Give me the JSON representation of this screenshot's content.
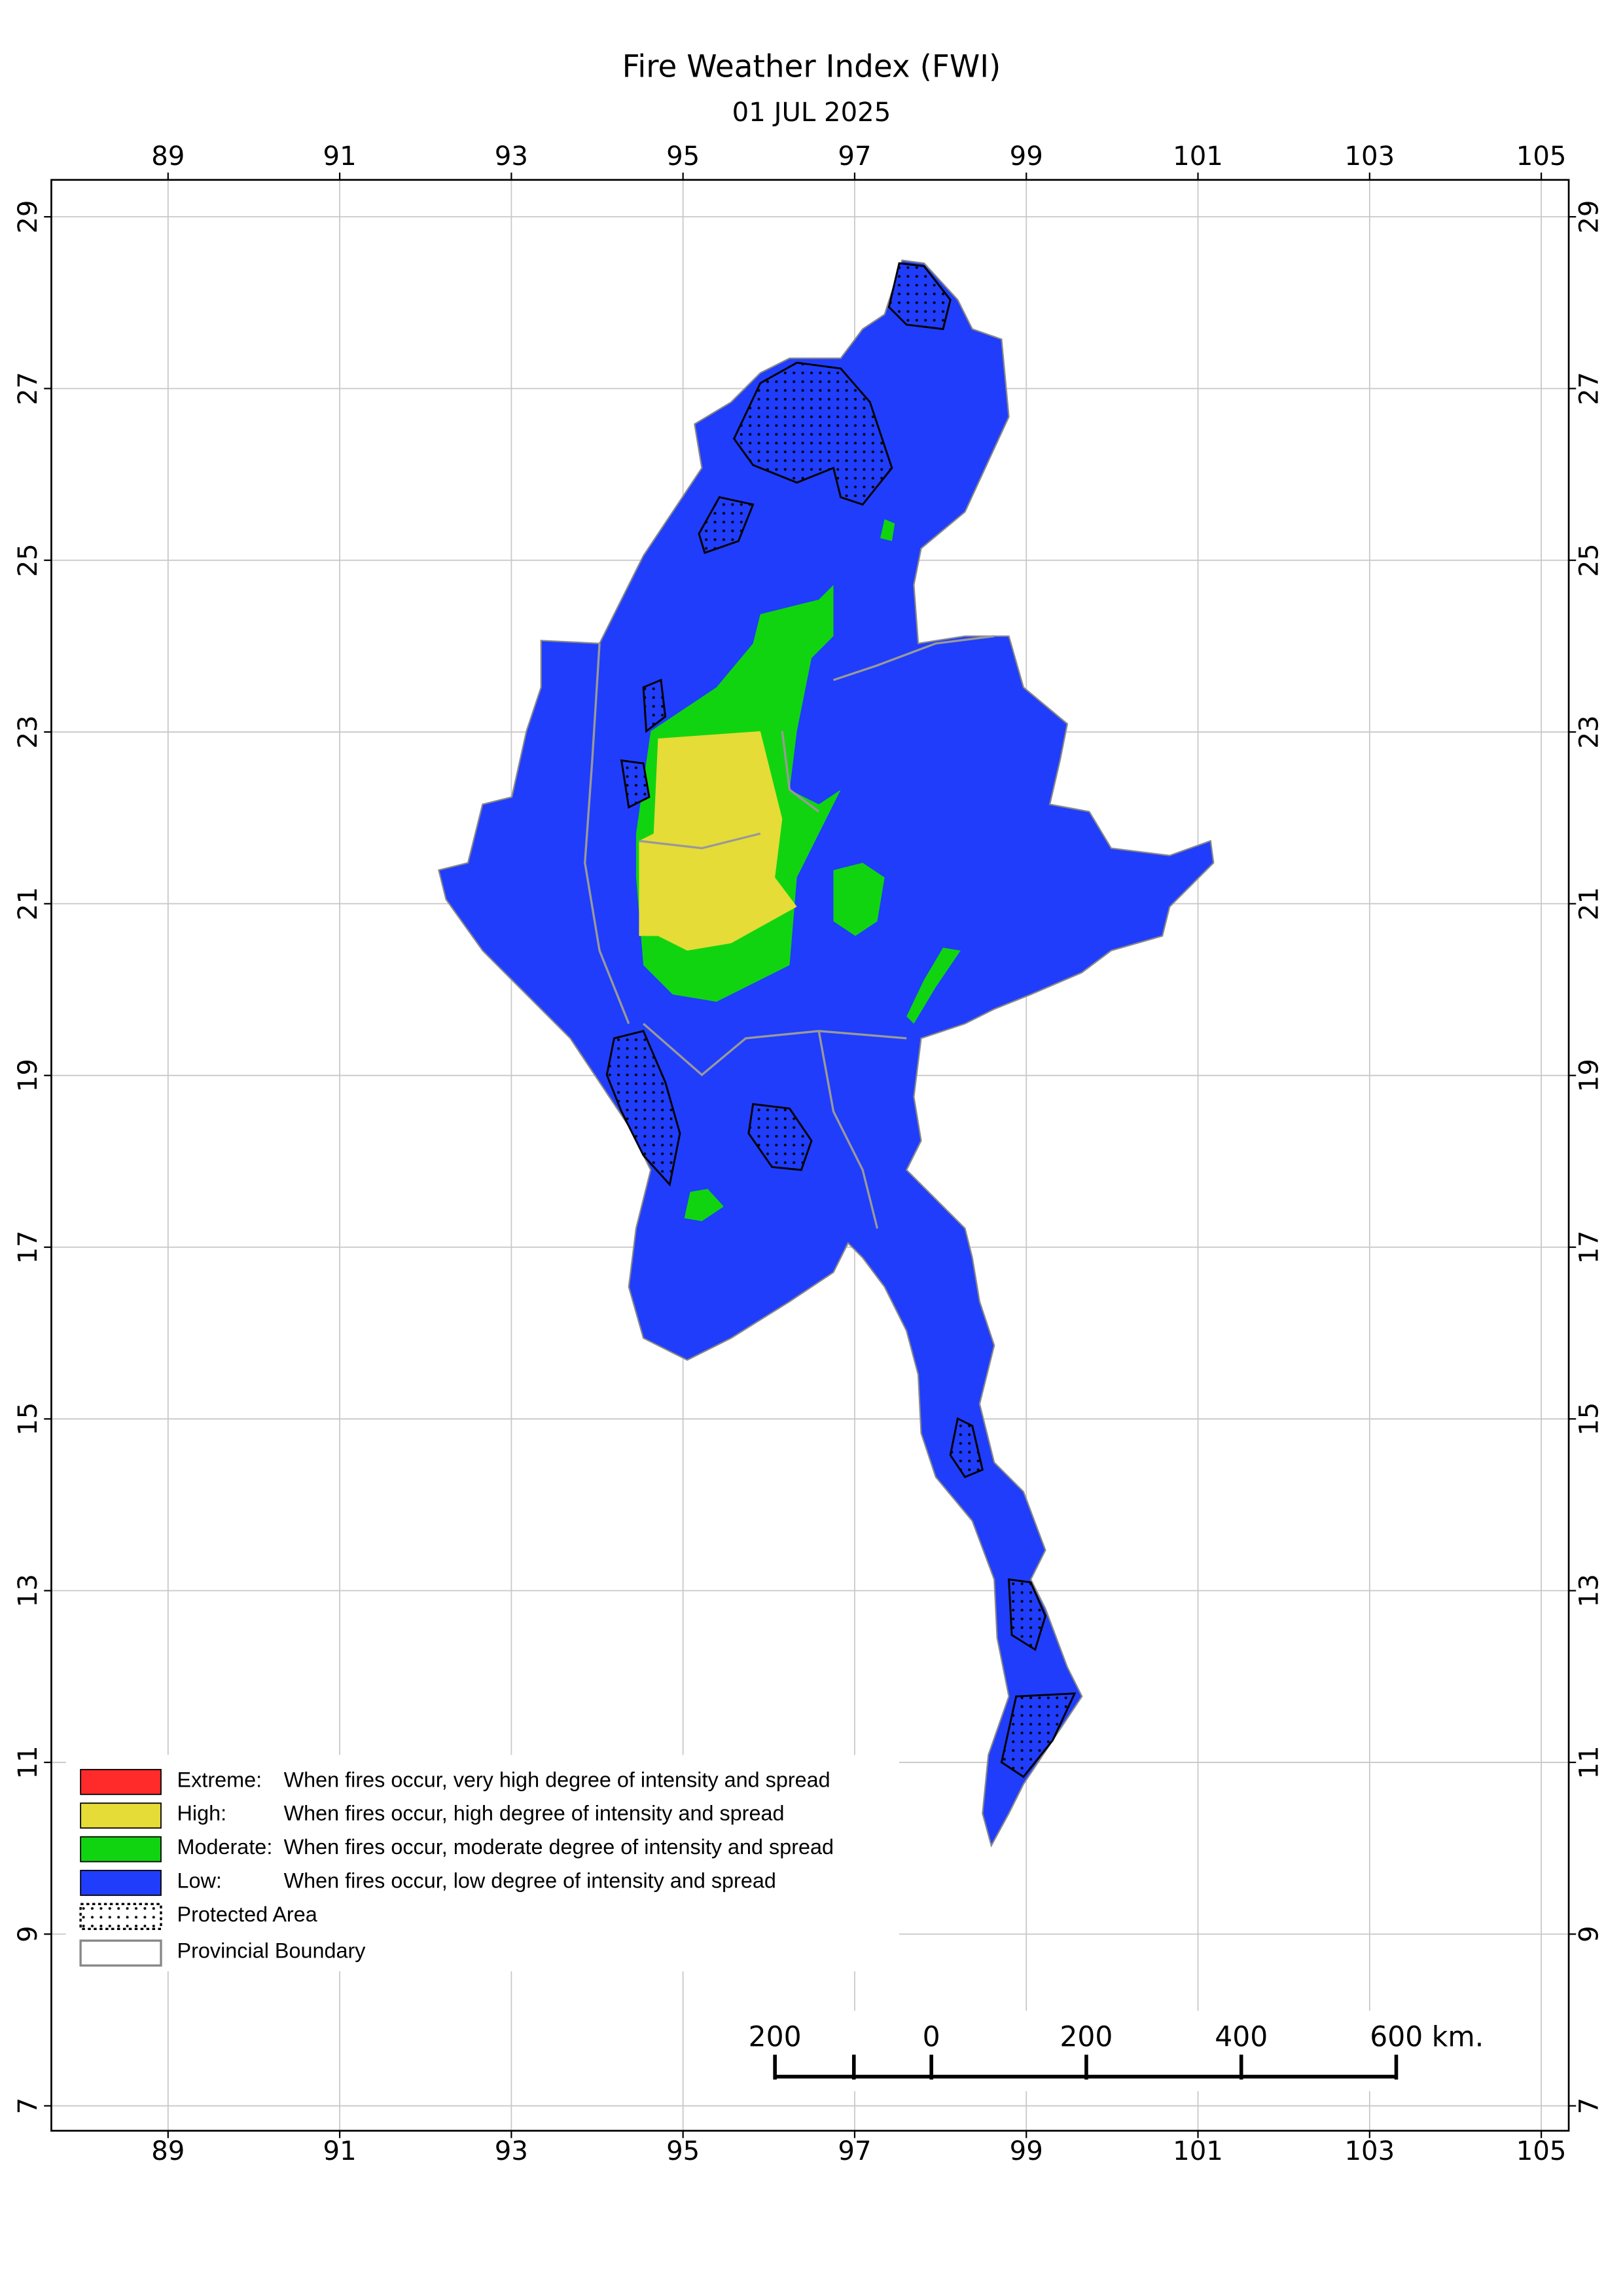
{
  "header": {
    "title": "Fire Weather Index (FWI)",
    "date": "01 JUL 2025"
  },
  "map": {
    "xlim": [
      87.64,
      105.32
    ],
    "ylim": [
      6.71,
      29.43
    ],
    "xticks": [
      89,
      91,
      93,
      95,
      97,
      99,
      101,
      103,
      105
    ],
    "yticks": [
      7,
      9,
      11,
      13,
      15,
      17,
      19,
      21,
      23,
      25,
      27,
      29
    ]
  },
  "legend": [
    {
      "label": "Extreme:",
      "text": "When fires occur, very high degree of intensity and spread",
      "color": "#ff2a2a"
    },
    {
      "label": "High:",
      "text": "When fires occur, high degree of intensity and spread",
      "color": "#e5dc37"
    },
    {
      "label": "Moderate:",
      "text": "When fires occur, moderate degree of intensity and spread",
      "color": "#11d411"
    },
    {
      "label": "Low:",
      "text": "When fires occur, low degree of intensity and spread",
      "color": "#1f3dfa"
    },
    {
      "label": "Protected Area"
    },
    {
      "label": "Provincial Boundary"
    }
  ],
  "scale_bar": {
    "labels": [
      "200",
      "0",
      "200",
      "400",
      "600 km."
    ]
  }
}
